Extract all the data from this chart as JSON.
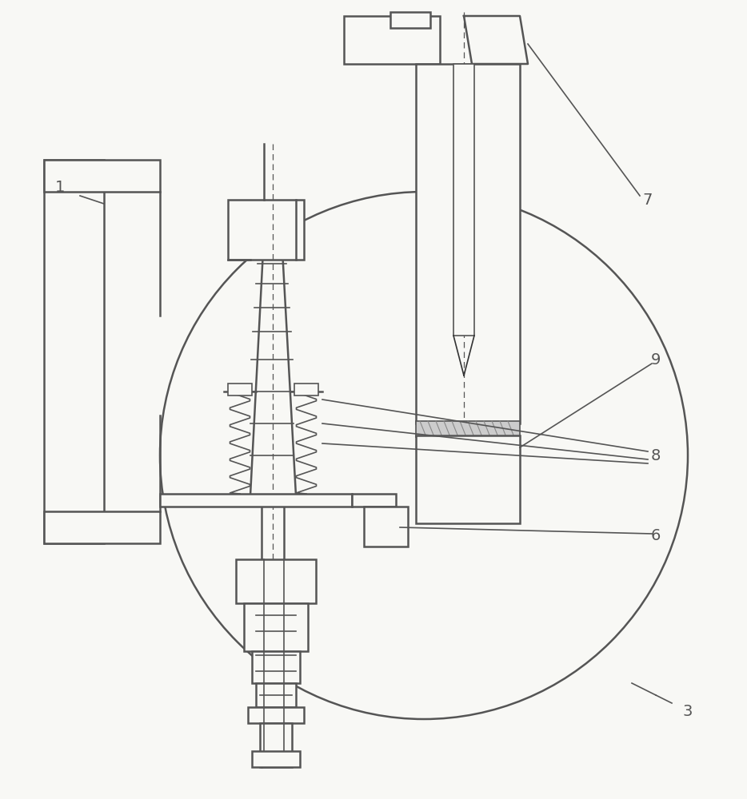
{
  "bg_color": "#f8f8f5",
  "lc": "#555555",
  "dc": "#333333",
  "label_fontsize": 14,
  "figsize": [
    9.34,
    10.0
  ],
  "dpi": 100
}
